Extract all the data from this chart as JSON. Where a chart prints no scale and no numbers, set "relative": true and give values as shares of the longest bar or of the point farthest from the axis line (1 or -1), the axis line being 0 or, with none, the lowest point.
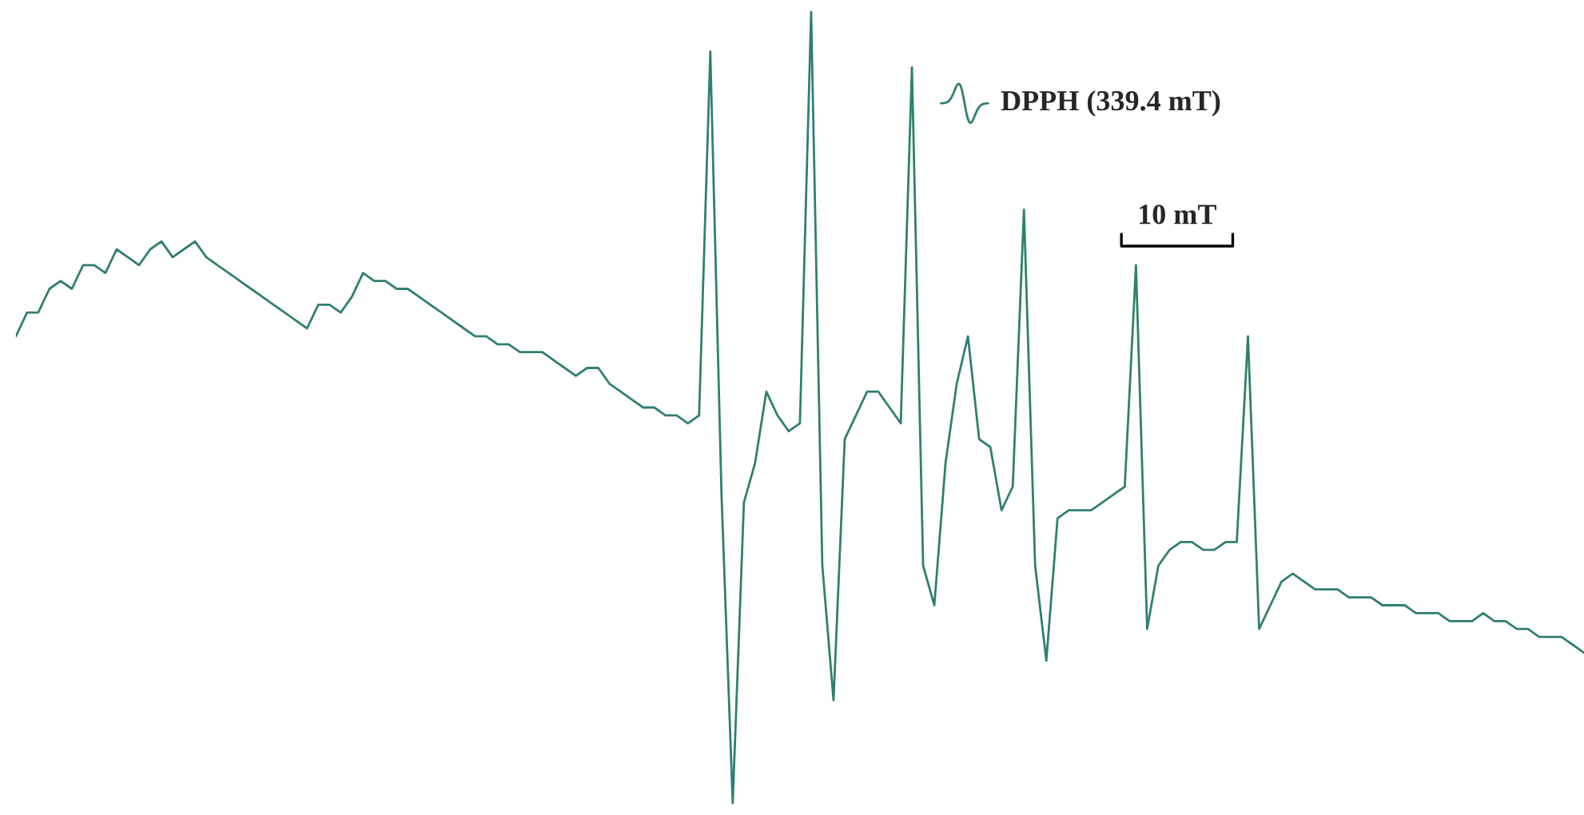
{
  "chart_data": {
    "type": "line",
    "relative": true,
    "grid": false,
    "legend": false,
    "annotations": [
      "DPPH (339.4 mT)",
      "10 mT"
    ],
    "categories": [
      null,
      null,
      null,
      null,
      null,
      null,
      null,
      null,
      null,
      null,
      null,
      null,
      null,
      null,
      null,
      null,
      null,
      null,
      null,
      null,
      null,
      null,
      null,
      null,
      null,
      null,
      null,
      null,
      null,
      null,
      null,
      null,
      null,
      null,
      null,
      null,
      null,
      null,
      null,
      null,
      null,
      null,
      null,
      null,
      null,
      null,
      null,
      null,
      null,
      null,
      null,
      null,
      null,
      null,
      null,
      null,
      null,
      null,
      null,
      null,
      null,
      null,
      null,
      null,
      null,
      null,
      null,
      null,
      null,
      null,
      null,
      null,
      null,
      null,
      null,
      null,
      null,
      null,
      null,
      null,
      null,
      null,
      null,
      null,
      null,
      null,
      null,
      null,
      null,
      null,
      null,
      null,
      null,
      null,
      null,
      null,
      null,
      null,
      null,
      null,
      null,
      null,
      null,
      null,
      null,
      null,
      null,
      null,
      null,
      null,
      null,
      null,
      null,
      null,
      null,
      null,
      null,
      null,
      null,
      null,
      null,
      null,
      null,
      null,
      null,
      null,
      null,
      null,
      null,
      null,
      null,
      null,
      null,
      null,
      null,
      null,
      null,
      null,
      null,
      null,
      null
    ],
    "series": [
      {
        "color": "#2f7f72",
        "values": [
          0.59,
          0.62,
          0.62,
          0.65,
          0.66,
          0.65,
          0.68,
          0.68,
          0.67,
          0.7,
          0.69,
          0.68,
          0.7,
          0.71,
          0.69,
          0.7,
          0.71,
          0.69,
          0.68,
          0.67,
          0.66,
          0.65,
          0.64,
          0.63,
          0.62,
          0.61,
          0.6,
          0.63,
          0.63,
          0.62,
          0.64,
          0.67,
          0.66,
          0.66,
          0.65,
          0.65,
          0.64,
          0.63,
          0.62,
          0.61,
          0.6,
          0.59,
          0.59,
          0.58,
          0.58,
          0.57,
          0.57,
          0.57,
          0.56,
          0.55,
          0.54,
          0.55,
          0.55,
          0.53,
          0.52,
          0.51,
          0.5,
          0.5,
          0.49,
          0.49,
          0.48,
          0.49,
          0.95,
          0.39,
          0.0,
          0.38,
          0.43,
          0.52,
          0.49,
          0.47,
          0.48,
          1.0,
          0.3,
          0.13,
          0.46,
          0.49,
          0.52,
          0.52,
          0.5,
          0.48,
          0.93,
          0.3,
          0.25,
          0.43,
          0.53,
          0.59,
          0.46,
          0.45,
          0.37,
          0.4,
          0.75,
          0.3,
          0.18,
          0.36,
          0.37,
          0.37,
          0.37,
          0.38,
          0.39,
          0.4,
          0.68,
          0.22,
          0.3,
          0.32,
          0.33,
          0.33,
          0.32,
          0.32,
          0.33,
          0.33,
          0.59,
          0.22,
          0.25,
          0.28,
          0.29,
          0.28,
          0.27,
          0.27,
          0.27,
          0.26,
          0.26,
          0.26,
          0.25,
          0.25,
          0.25,
          0.24,
          0.24,
          0.24,
          0.23,
          0.23,
          0.23,
          0.24,
          0.23,
          0.23,
          0.22,
          0.22,
          0.21,
          0.21,
          0.21,
          0.2,
          0.19
        ]
      }
    ]
  }
}
